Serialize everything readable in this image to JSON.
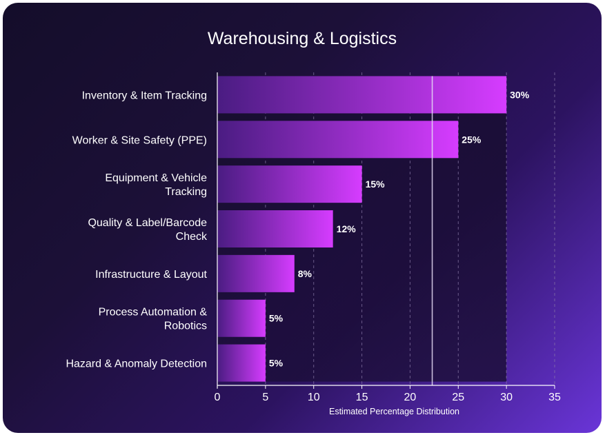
{
  "chart_data": {
    "type": "bar",
    "orientation": "horizontal",
    "title": "Warehousing & Logistics",
    "xlabel": "Estimated Percentage Distribution",
    "ylabel": "",
    "categories": [
      [
        "Inventory & Item Tracking"
      ],
      [
        "Worker & Site Safety (PPE)"
      ],
      [
        "Equipment & Vehicle",
        "Tracking"
      ],
      [
        "Quality & Label/Barcode",
        "Check"
      ],
      [
        "Infrastructure & Layout"
      ],
      [
        "Process Automation &",
        "Robotics"
      ],
      [
        "Hazard & Anomaly Detection"
      ]
    ],
    "values": [
      30,
      25,
      15,
      12,
      8,
      5,
      5
    ],
    "value_labels": [
      "30%",
      "25%",
      "15%",
      "12%",
      "8%",
      "5%",
      "5%"
    ],
    "xlim": [
      0,
      35
    ],
    "xticks": [
      0,
      5,
      10,
      15,
      20,
      25,
      30,
      35
    ],
    "reference_lines": [
      22.3
    ],
    "grid": "vertical-dashed",
    "colors": {
      "bar_start": "#4a1c82",
      "bar_end": "#d63cff",
      "text": "#ffffff",
      "grid": "#8a7aa8"
    }
  }
}
